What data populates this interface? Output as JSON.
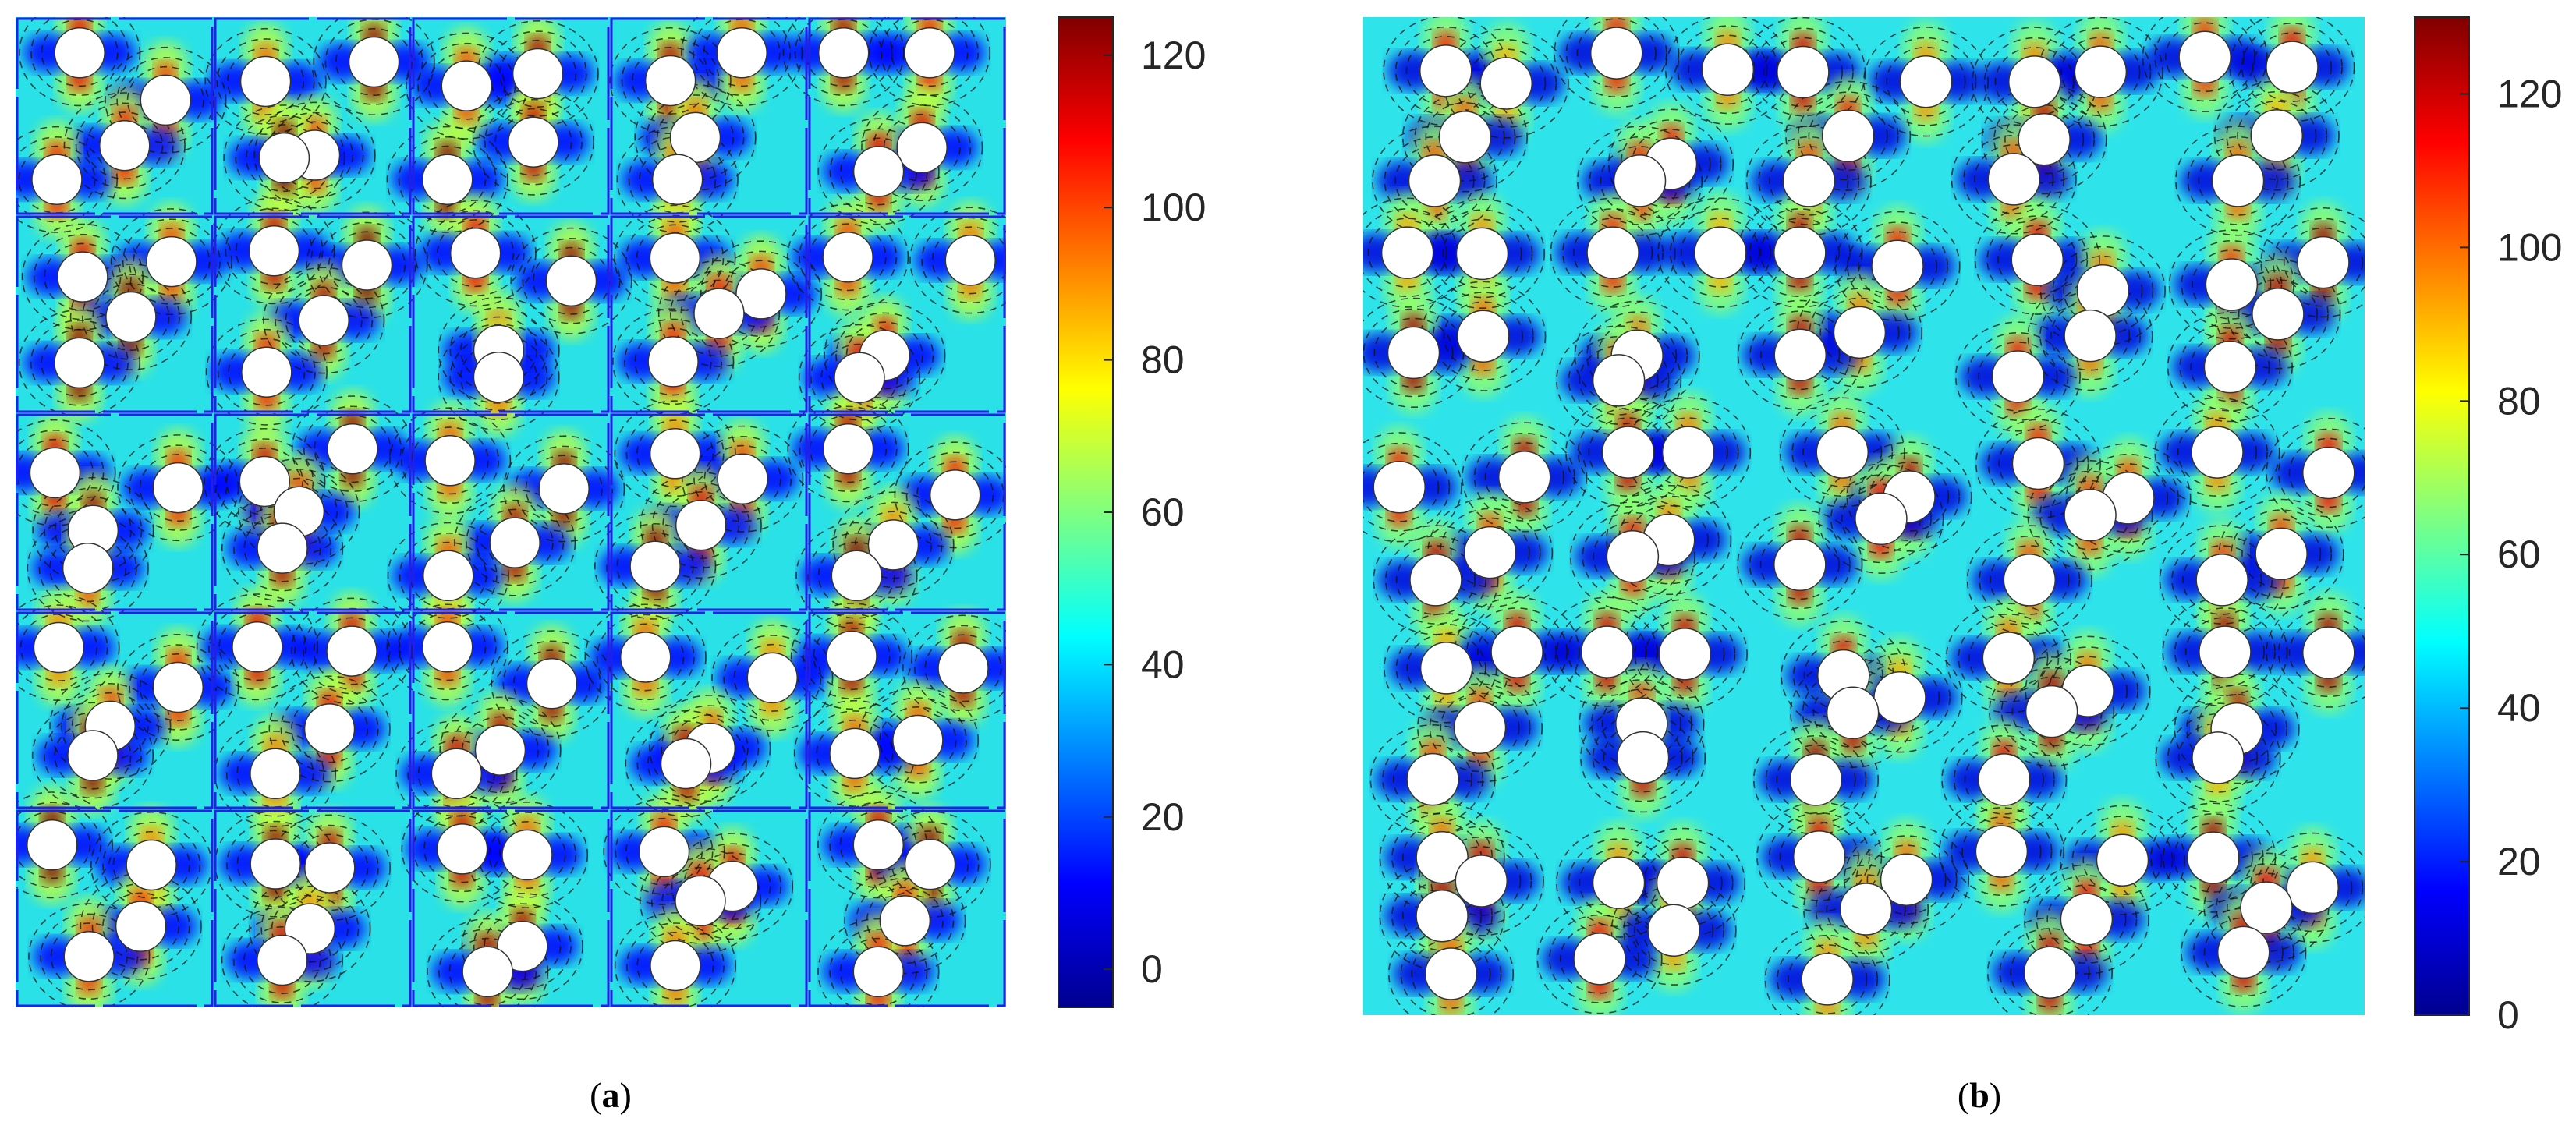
{
  "chart_data": [
    {
      "type": "heatmap",
      "panel_label": "a",
      "title": "",
      "xlabel": "",
      "ylabel": "",
      "colormap": "jet",
      "color_range": [
        -5,
        125
      ],
      "colorbar_ticks": [
        0,
        20,
        40,
        60,
        80,
        100,
        120
      ],
      "colorbar_tick_labels": [
        "0",
        "20",
        "40",
        "60",
        "80",
        "100",
        "120"
      ],
      "contour_lines": "dashed black",
      "background_level": 50,
      "cell_grid": [
        5,
        5
      ],
      "cell_borders": "blue",
      "inclusions_per_cell": 4,
      "inclusion_color": "#ffffff",
      "grid": false,
      "legend": "none"
    },
    {
      "type": "heatmap",
      "panel_label": "b",
      "title": "",
      "xlabel": "",
      "ylabel": "",
      "colormap": "jet",
      "color_range": [
        0,
        130
      ],
      "colorbar_ticks": [
        0,
        20,
        40,
        60,
        80,
        100,
        120
      ],
      "colorbar_tick_labels": [
        "0",
        "20",
        "40",
        "60",
        "80",
        "100",
        "120"
      ],
      "contour_lines": "dashed black",
      "background_level": 50,
      "cell_grid": [
        5,
        5
      ],
      "cell_borders": "none",
      "inclusions_per_cell": 4,
      "inclusion_color": "#ffffff",
      "grid": false,
      "legend": "none"
    }
  ],
  "captions": {
    "a_open": "(",
    "a_letter": "a",
    "a_close": ")",
    "b_open": "(",
    "b_letter": "b",
    "b_close": ")"
  }
}
